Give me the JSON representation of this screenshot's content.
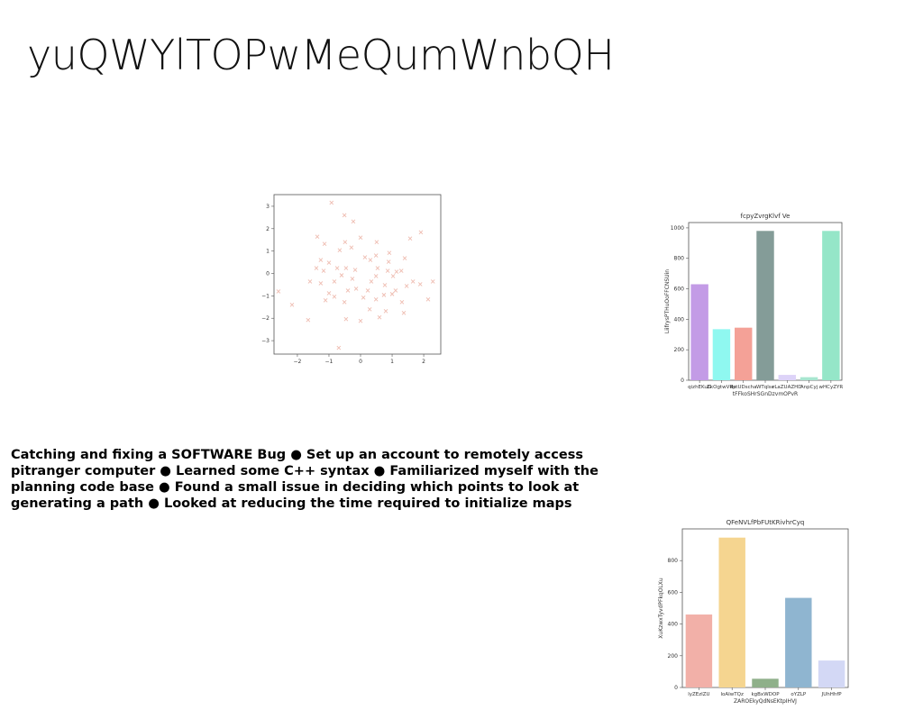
{
  "title": "yuQWYlTOPwMeQumWnbQH",
  "body": "Catching and fixing a SOFTWARE Bug ● Set up an account to remotely access pitranger computer ● Learned some C++ syntax ● Familiarized myself with the planning code base ● Found a small issue in deciding which points to look at generating a path ● Looked at reducing the time required to initialize maps",
  "chart_data": [
    {
      "type": "scatter",
      "color": "#e8a090",
      "x": [
        -0.92,
        -0.51,
        -0.23,
        -1.37,
        0,
        -1.14,
        0.51,
        1.57,
        1.91,
        -0.49,
        -0.66,
        -0.29,
        0.91,
        0.14,
        0.49,
        1.4,
        -1.26,
        -1,
        -1.4,
        -1.17,
        -0.46,
        -0.17,
        0.54,
        0.86,
        1.14,
        -2.6,
        -2.17,
        -1.66,
        -1.6,
        -1.26,
        -1,
        -0.83,
        -0.51,
        -0.46,
        -0.69,
        0,
        0.29,
        0.6,
        0.8,
        1,
        1.31,
        1.37,
        1.66,
        2.14,
        2.29,
        1.89,
        -0.14,
        0.23,
        0.49,
        0.77,
        -0.26,
        -0.6,
        -0.83,
        1.03,
        1.29,
        0.31,
        0.89,
        -0.74,
        0.49,
        0.09,
        -0.4,
        -1.11,
        1.46,
        1.11,
        0.74,
        0.34
      ],
      "y": [
        3.16,
        2.6,
        2.32,
        1.64,
        1.6,
        1.32,
        1.4,
        1.56,
        1.84,
        1.4,
        1.04,
        1.16,
        0.92,
        0.72,
        0.8,
        0.68,
        0.6,
        0.48,
        0.24,
        0.12,
        0.24,
        0.16,
        0.24,
        0.12,
        0.08,
        -0.8,
        -1.4,
        -2.08,
        -0.36,
        -0.44,
        -0.88,
        -1.04,
        -1.28,
        -2.04,
        -3.32,
        -2.12,
        -1.6,
        -1.96,
        -1.68,
        -0.92,
        -1.28,
        -1.76,
        -0.36,
        -1.16,
        -0.36,
        -0.48,
        -0.68,
        -0.76,
        -0.12,
        -0.52,
        -0.24,
        -0.08,
        -0.36,
        -0.12,
        0.12,
        0.6,
        0.52,
        0.24,
        -1.16,
        -1.08,
        -0.76,
        -1.2,
        -0.56,
        -0.76,
        -0.96,
        -0.36
      ],
      "xlim": [
        -2.74,
        2.54
      ],
      "xticks": [
        {
          "value": -2,
          "label": "−2"
        },
        {
          "value": -1,
          "label": "−1"
        },
        0,
        1,
        2
      ],
      "ylim": [
        -3.6,
        3.52
      ],
      "yticks": [
        {
          "value": -3,
          "label": "−3"
        },
        {
          "value": -2,
          "label": "−2"
        },
        {
          "value": -1,
          "label": "−1"
        },
        0,
        1,
        2,
        3
      ]
    },
    {
      "type": "bar",
      "title": "fcpyZvrgKlvf Ve",
      "x_label": "tFFkoSHrSGnDzvmOPvR",
      "y_label": "LiifrysPTHuOoFFCNSUin",
      "categories": [
        "qizhEKuG",
        "ZkOgtwVRp",
        "dstUDscha",
        "WTqlse",
        "rLaZUAZHD",
        "AnpCyj",
        "wHCyZYR"
      ],
      "values": [
        630,
        335,
        345,
        980,
        35,
        20,
        980
      ],
      "colors": [
        "#c39be6",
        "#8ff8f0",
        "#f4a197",
        "#849c98",
        "#ddd3f8",
        "#a8e6d0",
        "#95e6c8"
      ],
      "ylim": [
        0,
        1035
      ],
      "yticks": [
        0,
        200,
        400,
        600,
        800,
        1000
      ]
    },
    {
      "type": "bar",
      "title": "QFeNVLfPbFUtKRivhrCyq",
      "x_label": "ZAROEkyQdNsEKtpIHVJ",
      "y_label": "XuKzwxTyvdPFkqOLXu",
      "categories": [
        "lyZEzIZU",
        "loAIwTQz",
        "kgBxWDOP",
        "oYZLP",
        "JUhHhfP"
      ],
      "values": [
        460,
        945,
        55,
        565,
        170
      ],
      "colors": [
        "#f2b0a8",
        "#f5d590",
        "#8fb08a",
        "#8fb5d0",
        "#d3d8f5"
      ],
      "ylim": [
        0,
        1000
      ],
      "yticks": [
        0,
        200,
        400,
        600,
        800
      ]
    }
  ]
}
